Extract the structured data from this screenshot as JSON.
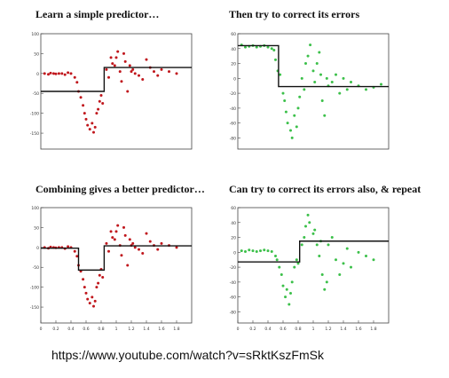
{
  "url_caption": "https://www.youtube.com/watch?v=sRktKszFmSk",
  "colors": {
    "red_points": "#c0161c",
    "green_points": "#3cc04a",
    "fit_line": "#111111"
  },
  "chart_data": [
    {
      "type": "scatter",
      "title": "Learn a simple predictor…",
      "point_color": "#c0161c",
      "xlim": [
        0,
        2
      ],
      "ylim": [
        -190,
        100
      ],
      "yticks": [
        100,
        50,
        0,
        -50,
        -100,
        -150
      ],
      "xticks": [],
      "points": [
        [
          0.05,
          0
        ],
        [
          0.1,
          -2
        ],
        [
          0.13,
          1
        ],
        [
          0.17,
          0
        ],
        [
          0.2,
          -1
        ],
        [
          0.24,
          0
        ],
        [
          0.28,
          0
        ],
        [
          0.32,
          -3
        ],
        [
          0.36,
          2
        ],
        [
          0.4,
          0
        ],
        [
          0.45,
          -10
        ],
        [
          0.48,
          -22
        ],
        [
          0.5,
          -45
        ],
        [
          0.53,
          -60
        ],
        [
          0.56,
          -80
        ],
        [
          0.58,
          -100
        ],
        [
          0.6,
          -115
        ],
        [
          0.62,
          -130
        ],
        [
          0.65,
          -140
        ],
        [
          0.68,
          -125
        ],
        [
          0.7,
          -148
        ],
        [
          0.72,
          -135
        ],
        [
          0.74,
          -100
        ],
        [
          0.76,
          -90
        ],
        [
          0.78,
          -70
        ],
        [
          0.8,
          -55
        ],
        [
          0.82,
          -75
        ],
        [
          0.87,
          10
        ],
        [
          0.9,
          -10
        ],
        [
          0.93,
          40
        ],
        [
          0.95,
          25
        ],
        [
          0.98,
          20
        ],
        [
          1.0,
          40
        ],
        [
          1.02,
          55
        ],
        [
          1.05,
          5
        ],
        [
          1.07,
          -20
        ],
        [
          1.1,
          50
        ],
        [
          1.12,
          30
        ],
        [
          1.15,
          -45
        ],
        [
          1.18,
          20
        ],
        [
          1.2,
          5
        ],
        [
          1.22,
          10
        ],
        [
          1.25,
          0
        ],
        [
          1.3,
          -5
        ],
        [
          1.35,
          -15
        ],
        [
          1.4,
          35
        ],
        [
          1.45,
          15
        ],
        [
          1.5,
          5
        ],
        [
          1.55,
          -5
        ],
        [
          1.6,
          10
        ],
        [
          1.7,
          5
        ],
        [
          1.8,
          0
        ]
      ],
      "step_fit": {
        "x": [
          0,
          0.84,
          0.84,
          2
        ],
        "y": [
          -45,
          -45,
          15,
          15
        ]
      }
    },
    {
      "type": "scatter",
      "title": "Then try to correct its errors",
      "point_color": "#3cc04a",
      "xlim": [
        0,
        2
      ],
      "ylim": [
        -95,
        60
      ],
      "yticks": [
        60,
        40,
        20,
        0,
        -20,
        -40,
        -60,
        -80
      ],
      "xticks": [],
      "points": [
        [
          0.05,
          45
        ],
        [
          0.1,
          42
        ],
        [
          0.15,
          43
        ],
        [
          0.2,
          44
        ],
        [
          0.25,
          42
        ],
        [
          0.3,
          43
        ],
        [
          0.35,
          44
        ],
        [
          0.4,
          42
        ],
        [
          0.45,
          40
        ],
        [
          0.48,
          38
        ],
        [
          0.5,
          25
        ],
        [
          0.53,
          10
        ],
        [
          0.56,
          5
        ],
        [
          0.6,
          -20
        ],
        [
          0.62,
          -30
        ],
        [
          0.64,
          -45
        ],
        [
          0.66,
          -60
        ],
        [
          0.7,
          -70
        ],
        [
          0.72,
          -80
        ],
        [
          0.75,
          -50
        ],
        [
          0.78,
          -65
        ],
        [
          0.8,
          -40
        ],
        [
          0.82,
          -25
        ],
        [
          0.85,
          0
        ],
        [
          0.88,
          -15
        ],
        [
          0.9,
          20
        ],
        [
          0.93,
          30
        ],
        [
          0.96,
          45
        ],
        [
          1.0,
          10
        ],
        [
          1.02,
          -5
        ],
        [
          1.05,
          20
        ],
        [
          1.08,
          35
        ],
        [
          1.1,
          5
        ],
        [
          1.12,
          -30
        ],
        [
          1.15,
          -50
        ],
        [
          1.18,
          0
        ],
        [
          1.2,
          -10
        ],
        [
          1.25,
          -5
        ],
        [
          1.3,
          5
        ],
        [
          1.35,
          -20
        ],
        [
          1.4,
          0
        ],
        [
          1.45,
          -15
        ],
        [
          1.5,
          -5
        ],
        [
          1.6,
          -10
        ],
        [
          1.7,
          -15
        ],
        [
          1.8,
          -12
        ],
        [
          1.9,
          -8
        ]
      ],
      "step_fit": {
        "x": [
          0,
          0.54,
          0.54,
          2
        ],
        "y": [
          44,
          44,
          -11,
          -11
        ]
      }
    },
    {
      "type": "scatter",
      "title": "Combining gives a better predictor…",
      "point_color": "#c0161c",
      "xlim": [
        0,
        2
      ],
      "ylim": [
        -190,
        100
      ],
      "yticks": [
        100,
        50,
        0,
        -50,
        -100,
        -150
      ],
      "xticks": [
        0,
        0.2,
        0.4,
        0.6,
        0.8,
        1.0,
        1.2,
        1.4,
        1.6,
        1.8
      ],
      "xtick_labels": [
        "0",
        "0.2",
        "0.4",
        "0.6",
        "0.8",
        "1",
        "1.2",
        "1.4",
        "1.6",
        "1.8"
      ],
      "points": [
        [
          0.05,
          0
        ],
        [
          0.1,
          -2
        ],
        [
          0.13,
          1
        ],
        [
          0.17,
          0
        ],
        [
          0.2,
          -1
        ],
        [
          0.24,
          0
        ],
        [
          0.28,
          0
        ],
        [
          0.32,
          -3
        ],
        [
          0.36,
          2
        ],
        [
          0.4,
          0
        ],
        [
          0.45,
          -10
        ],
        [
          0.48,
          -22
        ],
        [
          0.5,
          -45
        ],
        [
          0.53,
          -60
        ],
        [
          0.56,
          -80
        ],
        [
          0.58,
          -100
        ],
        [
          0.6,
          -115
        ],
        [
          0.62,
          -130
        ],
        [
          0.65,
          -140
        ],
        [
          0.68,
          -125
        ],
        [
          0.7,
          -148
        ],
        [
          0.72,
          -135
        ],
        [
          0.74,
          -100
        ],
        [
          0.76,
          -90
        ],
        [
          0.78,
          -70
        ],
        [
          0.8,
          -55
        ],
        [
          0.82,
          -75
        ],
        [
          0.87,
          10
        ],
        [
          0.9,
          -10
        ],
        [
          0.93,
          40
        ],
        [
          0.95,
          25
        ],
        [
          0.98,
          20
        ],
        [
          1.0,
          40
        ],
        [
          1.02,
          55
        ],
        [
          1.05,
          5
        ],
        [
          1.07,
          -20
        ],
        [
          1.1,
          50
        ],
        [
          1.12,
          30
        ],
        [
          1.15,
          -45
        ],
        [
          1.18,
          20
        ],
        [
          1.2,
          5
        ],
        [
          1.22,
          10
        ],
        [
          1.25,
          0
        ],
        [
          1.3,
          -5
        ],
        [
          1.35,
          -15
        ],
        [
          1.4,
          35
        ],
        [
          1.45,
          15
        ],
        [
          1.5,
          5
        ],
        [
          1.55,
          -5
        ],
        [
          1.6,
          10
        ],
        [
          1.7,
          5
        ],
        [
          1.8,
          0
        ]
      ],
      "step_fit": {
        "x": [
          0,
          0.5,
          0.5,
          0.84,
          0.84,
          2
        ],
        "y": [
          -2,
          -2,
          -57,
          -57,
          4,
          4
        ]
      }
    },
    {
      "type": "scatter",
      "title": "Can try to correct its errors also, & repeat",
      "point_color": "#3cc04a",
      "xlim": [
        0,
        2
      ],
      "ylim": [
        -95,
        60
      ],
      "yticks": [
        60,
        40,
        20,
        0,
        -20,
        -40,
        -60,
        -80
      ],
      "xticks": [
        0,
        0.2,
        0.4,
        0.6,
        0.8,
        1.0,
        1.2,
        1.4,
        1.6,
        1.8
      ],
      "xtick_labels": [
        "0",
        "0.2",
        "0.4",
        "0.6",
        "0.8",
        "1",
        "1.2",
        "1.4",
        "1.6",
        "1.8"
      ],
      "points": [
        [
          0.05,
          2
        ],
        [
          0.1,
          1
        ],
        [
          0.15,
          3
        ],
        [
          0.2,
          2
        ],
        [
          0.25,
          1
        ],
        [
          0.3,
          2
        ],
        [
          0.35,
          3
        ],
        [
          0.4,
          2
        ],
        [
          0.45,
          1
        ],
        [
          0.5,
          -5
        ],
        [
          0.52,
          -10
        ],
        [
          0.55,
          -20
        ],
        [
          0.58,
          -30
        ],
        [
          0.6,
          -45
        ],
        [
          0.63,
          -60
        ],
        [
          0.65,
          -50
        ],
        [
          0.68,
          -70
        ],
        [
          0.7,
          -55
        ],
        [
          0.72,
          -40
        ],
        [
          0.75,
          -20
        ],
        [
          0.78,
          -10
        ],
        [
          0.8,
          -15
        ],
        [
          0.85,
          10
        ],
        [
          0.88,
          20
        ],
        [
          0.9,
          35
        ],
        [
          0.93,
          50
        ],
        [
          0.95,
          40
        ],
        [
          1.0,
          25
        ],
        [
          1.02,
          30
        ],
        [
          1.05,
          10
        ],
        [
          1.08,
          -5
        ],
        [
          1.1,
          15
        ],
        [
          1.12,
          -30
        ],
        [
          1.15,
          -50
        ],
        [
          1.18,
          -40
        ],
        [
          1.2,
          10
        ],
        [
          1.25,
          20
        ],
        [
          1.3,
          -10
        ],
        [
          1.35,
          -30
        ],
        [
          1.4,
          -15
        ],
        [
          1.45,
          5
        ],
        [
          1.5,
          -20
        ],
        [
          1.6,
          0
        ],
        [
          1.7,
          -5
        ],
        [
          1.8,
          -10
        ]
      ],
      "step_fit": {
        "x": [
          0,
          0.82,
          0.82,
          2
        ],
        "y": [
          -13,
          -13,
          15,
          15
        ]
      }
    }
  ]
}
